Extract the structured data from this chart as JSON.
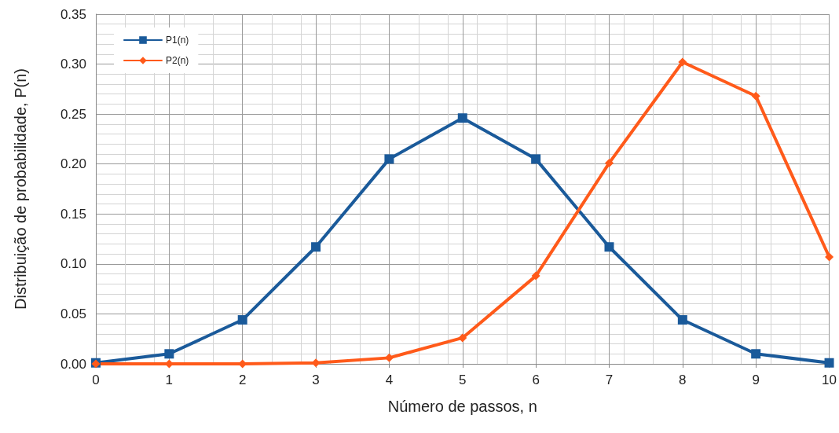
{
  "chart_data": {
    "type": "line",
    "xlabel": "Número de passos, n",
    "ylabel": "Distribuição de probabilidade, P(n)",
    "x": [
      0,
      1,
      2,
      3,
      4,
      5,
      6,
      7,
      8,
      9,
      10
    ],
    "series": [
      {
        "name": "P1(n)",
        "color": "#1a5a9a",
        "marker": "square",
        "values": [
          0.001,
          0.01,
          0.044,
          0.117,
          0.205,
          0.246,
          0.205,
          0.117,
          0.044,
          0.01,
          0.001
        ]
      },
      {
        "name": "P2(n)",
        "color": "#ff5a1a",
        "marker": "diamond",
        "values": [
          0.0,
          0.0,
          0.0,
          0.001,
          0.006,
          0.026,
          0.088,
          0.201,
          0.302,
          0.268,
          0.107
        ]
      }
    ],
    "xlim": [
      0,
      10
    ],
    "xticks": [
      0,
      1,
      2,
      3,
      4,
      5,
      6,
      7,
      8,
      9,
      10
    ],
    "ylim": [
      0,
      0.35
    ],
    "yticks": [
      {
        "value": 0,
        "label": "0.00"
      },
      0.05,
      {
        "value": 0.1,
        "label": "0.10"
      },
      0.15,
      {
        "value": 0.2,
        "label": "0.20"
      },
      0.25,
      {
        "value": 0.3,
        "label": "0.30"
      },
      0.35
    ],
    "grid": true,
    "legend": "top left",
    "line_style": "solid"
  }
}
